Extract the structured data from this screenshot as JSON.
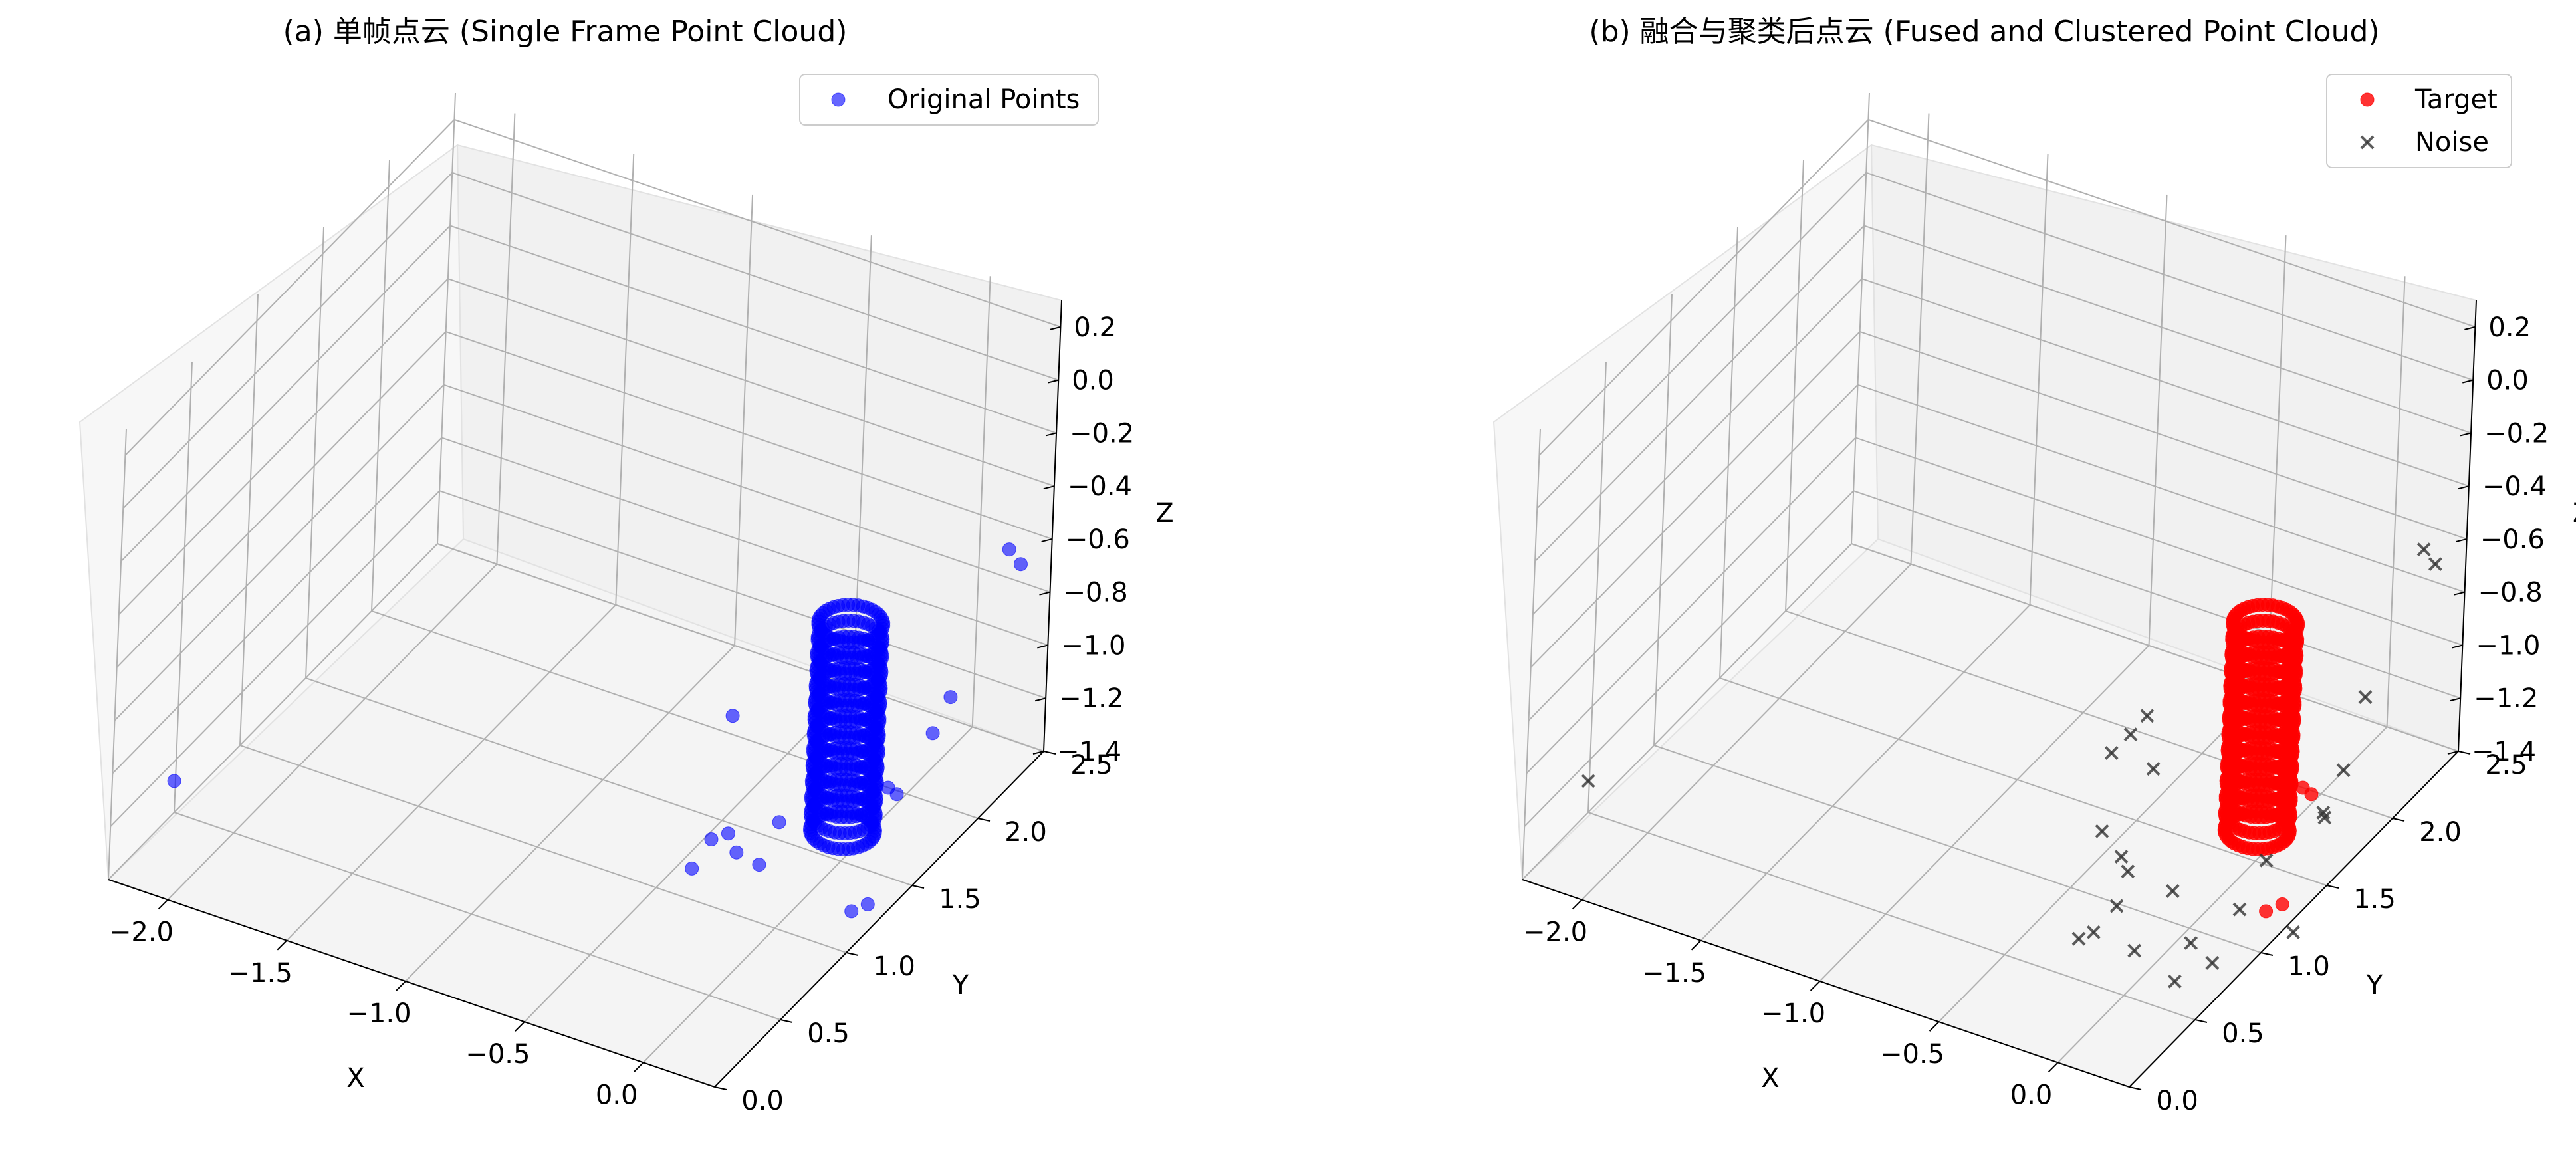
{
  "chart_data": [
    {
      "type": "scatter",
      "title": "(a) 单帧点云 (Single Frame Point Cloud)",
      "xlabel": "X",
      "ylabel": "Y",
      "zlabel": "Z",
      "xlim": [
        -2.25,
        0.3
      ],
      "ylim": [
        0.0,
        2.5
      ],
      "zlim": [
        -1.4,
        0.3
      ],
      "x_ticks": [
        -2.0,
        -1.5,
        -1.0,
        -0.5,
        0.0
      ],
      "y_ticks": [
        0.0,
        0.5,
        1.0,
        1.5,
        2.0,
        2.5
      ],
      "z_ticks": [
        -1.4,
        -1.2,
        -1.0,
        -0.8,
        -0.6,
        -0.4,
        -0.2,
        0.0,
        0.2
      ],
      "x_tick_labels": [
        "−2.0",
        "−1.5",
        "−1.0",
        "−0.5",
        "0.0"
      ],
      "y_tick_labels": [
        "0.0",
        "0.5",
        "1.0",
        "1.5",
        "2.0",
        "2.5"
      ],
      "z_tick_labels": [
        "−1.4",
        "−1.2",
        "−1.0",
        "−0.8",
        "−0.6",
        "−0.4",
        "−0.2",
        "0.0",
        "0.2"
      ],
      "grid": true,
      "legend_position": "top-right",
      "series": [
        {
          "name": "Original Points",
          "marker": "circle",
          "color": "#0000ff",
          "alpha": 0.6,
          "points": [
            [
              0.25,
              1.25,
              -1.36
            ],
            [
              0.22,
              1.18,
              -1.36
            ],
            [
              0.3,
              1.28,
              -0.92
            ],
            [
              0.35,
              1.52,
              -0.82
            ],
            [
              0.3,
              1.35,
              -0.98
            ],
            [
              0.0,
              1.0,
              -1.0
            ],
            [
              -0.05,
              0.95,
              -1.15
            ],
            [
              -0.12,
              0.9,
              -1.1
            ],
            [
              -0.2,
              0.85,
              -1.05
            ],
            [
              -0.25,
              0.8,
              -1.15
            ],
            [
              -0.2,
              0.98,
              -0.65
            ],
            [
              -2.15,
              0.3,
              -1.15
            ],
            [
              0.15,
              2.45,
              -0.66
            ],
            [
              0.2,
              2.45,
              -0.7
            ],
            [
              0.35,
              1.65,
              -0.75
            ],
            [
              -0.22,
              1.02,
              -1.12
            ]
          ]
        }
      ]
    },
    {
      "type": "scatter",
      "title": "(b) 融合与聚类后点云 (Fused and Clustered Point Cloud)",
      "xlabel": "X",
      "ylabel": "Y",
      "zlabel": "Z",
      "xlim": [
        -2.25,
        0.3
      ],
      "ylim": [
        0.0,
        2.5
      ],
      "zlim": [
        -1.4,
        0.3
      ],
      "x_ticks": [
        -2.0,
        -1.5,
        -1.0,
        -0.5,
        0.0
      ],
      "y_ticks": [
        0.0,
        0.5,
        1.0,
        1.5,
        2.0,
        2.5
      ],
      "z_ticks": [
        -1.4,
        -1.2,
        -1.0,
        -0.8,
        -0.6,
        -0.4,
        -0.2,
        0.0,
        0.2
      ],
      "x_tick_labels": [
        "−2.0",
        "−1.5",
        "−1.0",
        "−0.5",
        "0.0"
      ],
      "y_tick_labels": [
        "0.0",
        "0.5",
        "1.0",
        "1.5",
        "2.0",
        "2.5"
      ],
      "z_tick_labels": [
        "−1.4",
        "−1.2",
        "−1.0",
        "−0.8",
        "−0.6",
        "−0.4",
        "−0.2",
        "0.0",
        "0.2"
      ],
      "grid": true,
      "legend_position": "top-right",
      "series": [
        {
          "name": "Target",
          "marker": "circle",
          "color": "#ff0000",
          "alpha": 0.8,
          "points": [
            [
              0.25,
              1.25,
              -1.36
            ],
            [
              0.22,
              1.18,
              -1.36
            ],
            [
              0.3,
              1.28,
              -0.92
            ],
            [
              0.3,
              1.35,
              -0.98
            ]
          ]
        },
        {
          "name": "Noise",
          "marker": "x",
          "color": "#333333",
          "alpha": 0.8,
          "points": [
            [
              -2.15,
              0.3,
              -1.15
            ],
            [
              0.15,
              2.45,
              -0.66
            ],
            [
              0.2,
              2.45,
              -0.7
            ],
            [
              0.35,
              1.65,
              -0.75
            ],
            [
              -0.2,
              0.98,
              -0.65
            ],
            [
              -0.25,
              0.95,
              -0.72
            ],
            [
              -0.3,
              0.9,
              -0.78
            ],
            [
              -0.15,
              0.95,
              -0.82
            ],
            [
              -0.3,
              0.85,
              -1.05
            ],
            [
              -0.2,
              0.82,
              -1.1
            ],
            [
              -0.15,
              0.78,
              -1.12
            ],
            [
              -0.18,
              0.76,
              -1.25
            ],
            [
              -0.25,
              0.72,
              -1.35
            ],
            [
              -0.3,
              0.7,
              -1.38
            ],
            [
              -0.05,
              0.95,
              -1.25
            ],
            [
              0.05,
              0.92,
              -1.4
            ],
            [
              0.1,
              1.0,
              -1.5
            ],
            [
              0.0,
              0.9,
              -1.55
            ],
            [
              0.35,
              1.5,
              -0.95
            ],
            [
              0.3,
              1.45,
              -1.1
            ],
            [
              0.28,
              1.5,
              -1.15
            ],
            [
              0.15,
              1.3,
              -1.25
            ],
            [
              0.1,
              1.2,
              -1.4
            ],
            [
              0.3,
              1.25,
              -1.45
            ],
            [
              -0.12,
              0.8,
              -1.42
            ]
          ]
        }
      ]
    }
  ]
}
